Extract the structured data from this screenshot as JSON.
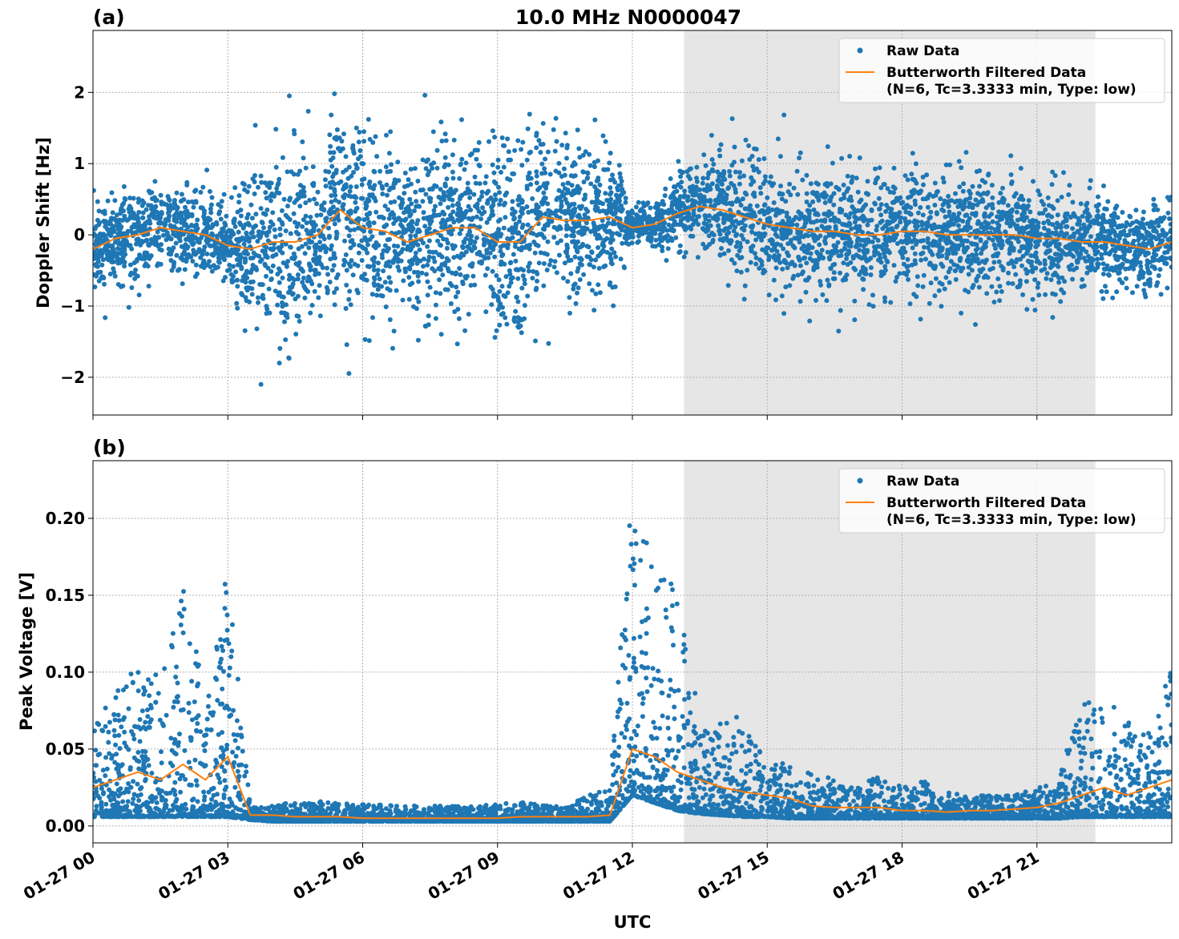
{
  "chart_data": [
    {
      "type": "scatter",
      "panel_label": "(a)",
      "title": "10.0 MHz N0000047",
      "xlabel": "",
      "ylabel": "Doppler Shift [Hz]",
      "xlim_hours": [
        0,
        24
      ],
      "ylim": [
        -2.53,
        2.87
      ],
      "yticks": [
        -2,
        -1,
        0,
        1,
        2
      ],
      "ytick_labels": [
        "−2",
        "−1",
        "0",
        "1",
        "2"
      ],
      "grid": true,
      "legend_placement": "top-right",
      "shaded_region_hours": [
        13.15,
        22.3
      ],
      "shaded_color": "#e6e6e6",
      "x_hours": [
        0,
        0.5,
        1,
        1.5,
        2,
        2.5,
        3,
        3.5,
        4,
        4.5,
        5,
        5.5,
        6,
        6.5,
        7,
        7.5,
        8,
        8.5,
        9,
        9.5,
        10,
        10.5,
        11,
        11.5,
        12,
        12.5,
        13,
        13.5,
        14,
        14.5,
        15,
        15.5,
        16,
        16.5,
        17,
        17.5,
        18,
        18.5,
        19,
        19.5,
        20,
        20.5,
        21,
        21.5,
        22,
        22.5,
        23,
        23.5,
        24
      ],
      "series": [
        {
          "name": "Raw Data",
          "kind": "scatter",
          "color": "#1f77b4",
          "center": [
            -0.2,
            -0.05,
            0.0,
            0.1,
            0.05,
            0.0,
            -0.15,
            -0.2,
            -0.1,
            -0.1,
            0.0,
            0.35,
            0.1,
            0.05,
            -0.1,
            0.0,
            0.1,
            0.1,
            -0.1,
            -0.1,
            0.25,
            0.2,
            0.2,
            0.25,
            0.15,
            0.15,
            0.3,
            0.4,
            0.35,
            0.25,
            0.15,
            0.1,
            0.05,
            0.05,
            0.0,
            0.0,
            0.05,
            0.05,
            0.0,
            0.0,
            0.0,
            0.0,
            -0.05,
            -0.05,
            -0.1,
            -0.1,
            -0.15,
            -0.2,
            -0.1
          ],
          "spread_std": [
            0.3,
            0.3,
            0.3,
            0.3,
            0.3,
            0.3,
            0.3,
            0.6,
            0.65,
            0.65,
            0.65,
            0.65,
            0.65,
            0.6,
            0.6,
            0.6,
            0.6,
            0.6,
            0.65,
            0.65,
            0.6,
            0.55,
            0.55,
            0.5,
            0.12,
            0.12,
            0.3,
            0.3,
            0.35,
            0.4,
            0.4,
            0.42,
            0.42,
            0.42,
            0.42,
            0.42,
            0.42,
            0.42,
            0.42,
            0.42,
            0.4,
            0.4,
            0.38,
            0.35,
            0.3,
            0.3,
            0.3,
            0.3,
            0.3
          ]
        },
        {
          "name": "Butterworth Filtered Data",
          "name_line2": "(N=6, Tc=3.3333 min, Type: low)",
          "kind": "line",
          "color": "#ff7f0e",
          "values": [
            -0.2,
            -0.05,
            0.0,
            0.1,
            0.05,
            0.0,
            -0.15,
            -0.2,
            -0.1,
            -0.1,
            0.0,
            0.35,
            0.1,
            0.05,
            -0.1,
            0.0,
            0.1,
            0.1,
            -0.1,
            -0.1,
            0.25,
            0.2,
            0.2,
            0.25,
            0.1,
            0.15,
            0.3,
            0.4,
            0.35,
            0.25,
            0.15,
            0.1,
            0.05,
            0.05,
            0.0,
            0.0,
            0.05,
            0.05,
            0.0,
            0.0,
            0.0,
            0.0,
            -0.05,
            -0.05,
            -0.1,
            -0.1,
            -0.15,
            -0.2,
            -0.1
          ]
        }
      ]
    },
    {
      "type": "scatter",
      "panel_label": "(b)",
      "xlabel": "UTC",
      "ylabel": "Peak Voltage [V]",
      "xlim_hours": [
        0,
        24
      ],
      "ylim": [
        -0.011,
        0.2375
      ],
      "yticks": [
        0,
        0.05,
        0.1,
        0.15,
        0.2
      ],
      "ytick_labels": [
        "0.00",
        "0.05",
        "0.10",
        "0.15",
        "0.20"
      ],
      "xticks_hours": [
        0,
        3,
        6,
        9,
        12,
        15,
        18,
        21
      ],
      "xtick_labels": [
        "01-27 00",
        "01-27 03",
        "01-27 06",
        "01-27 09",
        "01-27 12",
        "01-27 15",
        "01-27 18",
        "01-27 21"
      ],
      "grid": true,
      "legend_placement": "top-right",
      "shaded_region_hours": [
        13.15,
        22.3
      ],
      "x_hours": [
        0,
        0.5,
        1,
        1.5,
        2,
        2.5,
        3,
        3.5,
        4,
        4.5,
        5,
        5.5,
        6,
        6.5,
        7,
        7.5,
        8,
        8.5,
        9,
        9.5,
        10,
        10.5,
        11,
        11.5,
        12,
        12.5,
        13,
        13.5,
        14,
        14.5,
        15,
        15.5,
        16,
        16.5,
        17,
        17.5,
        18,
        18.5,
        19,
        19.5,
        20,
        20.5,
        21,
        21.5,
        22,
        22.5,
        23,
        23.5,
        24
      ],
      "series": [
        {
          "name": "Raw Data",
          "kind": "scatter",
          "color": "#1f77b4",
          "floor": [
            0.006,
            0.006,
            0.006,
            0.006,
            0.006,
            0.006,
            0.006,
            0.004,
            0.003,
            0.003,
            0.003,
            0.003,
            0.003,
            0.003,
            0.003,
            0.003,
            0.003,
            0.003,
            0.003,
            0.003,
            0.003,
            0.003,
            0.003,
            0.003,
            0.02,
            0.015,
            0.01,
            0.008,
            0.007,
            0.006,
            0.006,
            0.005,
            0.005,
            0.005,
            0.005,
            0.005,
            0.005,
            0.005,
            0.005,
            0.005,
            0.005,
            0.005,
            0.005,
            0.005,
            0.006,
            0.006,
            0.006,
            0.006,
            0.006
          ],
          "upper": [
            0.065,
            0.09,
            0.11,
            0.1,
            0.16,
            0.09,
            0.17,
            0.012,
            0.014,
            0.015,
            0.016,
            0.015,
            0.014,
            0.014,
            0.013,
            0.013,
            0.013,
            0.013,
            0.014,
            0.016,
            0.014,
            0.013,
            0.02,
            0.025,
            0.225,
            0.18,
            0.15,
            0.08,
            0.07,
            0.072,
            0.05,
            0.04,
            0.035,
            0.03,
            0.028,
            0.033,
            0.025,
            0.03,
            0.022,
            0.02,
            0.02,
            0.02,
            0.025,
            0.035,
            0.08,
            0.085,
            0.07,
            0.06,
            0.105
          ]
        },
        {
          "name": "Butterworth Filtered Data",
          "name_line2": "(N=6, Tc=3.3333 min, Type: low)",
          "kind": "line",
          "color": "#ff7f0e",
          "values": [
            0.025,
            0.03,
            0.035,
            0.03,
            0.04,
            0.03,
            0.045,
            0.007,
            0.007,
            0.006,
            0.006,
            0.006,
            0.005,
            0.005,
            0.005,
            0.005,
            0.005,
            0.005,
            0.005,
            0.006,
            0.006,
            0.006,
            0.006,
            0.007,
            0.05,
            0.045,
            0.035,
            0.03,
            0.025,
            0.022,
            0.02,
            0.018,
            0.013,
            0.012,
            0.012,
            0.012,
            0.01,
            0.01,
            0.009,
            0.01,
            0.01,
            0.011,
            0.012,
            0.015,
            0.02,
            0.025,
            0.02,
            0.025,
            0.03
          ]
        }
      ]
    }
  ]
}
